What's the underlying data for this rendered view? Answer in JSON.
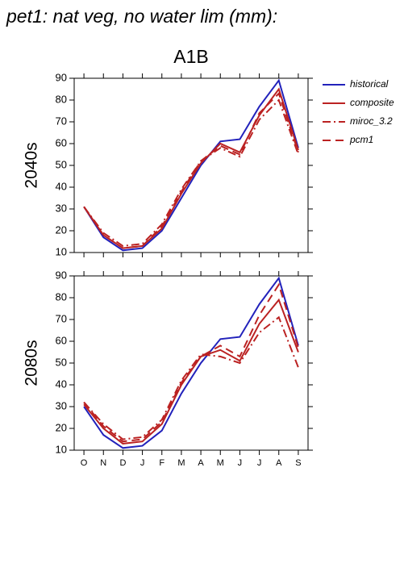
{
  "chart_data": [
    {
      "type": "line",
      "title": "pet1: nat veg, no water lim (mm):",
      "subtitle": "A1B",
      "ylabel": "2040s",
      "categories": [
        null,
        null,
        null,
        null,
        null,
        null,
        null,
        null,
        null,
        null,
        null,
        null
      ],
      "ylim": [
        10,
        90
      ],
      "yticks": [
        10,
        20,
        30,
        40,
        50,
        60,
        70,
        80,
        90
      ],
      "legend": "outside-right",
      "series": [
        {
          "name": "historical",
          "color": "#2222bb",
          "dash": "solid",
          "values": [
            31,
            17,
            11,
            12,
            20,
            35,
            50,
            61,
            62,
            77,
            89,
            58
          ]
        },
        {
          "name": "composite",
          "color": "#bb2222",
          "dash": "solid",
          "values": [
            31,
            18,
            12,
            13,
            21,
            37,
            51,
            60,
            56,
            73,
            85,
            57
          ]
        },
        {
          "name": "miroc_3.2",
          "color": "#bb2222",
          "dash": "dashdot",
          "values": [
            31,
            19,
            13,
            14,
            23,
            39,
            52,
            58,
            54,
            71,
            80,
            55
          ]
        },
        {
          "name": "pcm1",
          "color": "#bb2222",
          "dash": "dashed",
          "values": [
            31,
            18,
            12,
            13,
            22,
            38,
            52,
            59,
            55,
            74,
            83,
            56
          ]
        }
      ]
    },
    {
      "type": "line",
      "ylabel": "2080s",
      "categories": [
        "O",
        "N",
        "D",
        "J",
        "F",
        "M",
        "A",
        "M",
        "J",
        "J",
        "A",
        "S"
      ],
      "ylim": [
        10,
        90
      ],
      "yticks": [
        10,
        20,
        30,
        40,
        50,
        60,
        70,
        80,
        90
      ],
      "series": [
        {
          "color": "#2222bb",
          "dash": "solid",
          "values": [
            30,
            17,
            11,
            12,
            19,
            36,
            50,
            61,
            62,
            77,
            89,
            58
          ]
        },
        {
          "color": "#bb2222",
          "dash": "solid",
          "values": [
            31,
            20,
            13,
            14,
            22,
            40,
            53,
            56,
            51,
            68,
            79,
            55
          ]
        },
        {
          "color": "#bb2222",
          "dash": "dashdot",
          "values": [
            32,
            22,
            15,
            16,
            24,
            42,
            54,
            53,
            50,
            64,
            71,
            48
          ]
        },
        {
          "color": "#bb2222",
          "dash": "dashed",
          "values": [
            32,
            21,
            14,
            15,
            23,
            41,
            53,
            58,
            53,
            72,
            86,
            57
          ]
        }
      ]
    }
  ]
}
